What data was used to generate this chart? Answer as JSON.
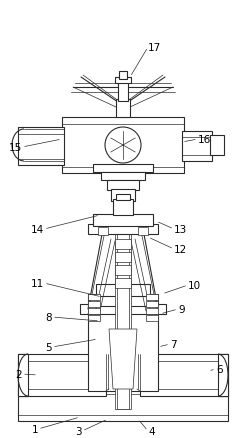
{
  "bg_color": "#ffffff",
  "line_color": "#2a2a2a",
  "label_color": "#000000",
  "fig_width": 2.46,
  "fig_height": 4.39,
  "dpi": 100,
  "label_fs": 7.5
}
